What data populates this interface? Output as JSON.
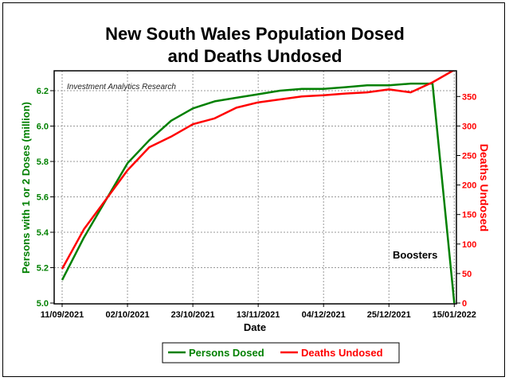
{
  "chart_data": {
    "type": "line",
    "title": [
      "New South Wales Population Dosed",
      "and Deaths Undosed"
    ],
    "watermark": "Investment Analytics Research",
    "annotation": "Boosters",
    "xlabel": "Date",
    "ylabel_left": "Persons with 1 or 2 Doses (million)",
    "ylabel_right": "Deaths Undosed",
    "x": [
      "11/09/2021",
      "18/09/2021",
      "25/09/2021",
      "02/10/2021",
      "09/10/2021",
      "16/10/2021",
      "23/10/2021",
      "30/10/2021",
      "06/11/2021",
      "13/11/2021",
      "20/11/2021",
      "27/11/2021",
      "04/12/2021",
      "11/12/2021",
      "18/12/2021",
      "25/12/2021",
      "01/01/2022",
      "08/01/2022",
      "15/01/2022"
    ],
    "x_ticks": [
      "11/09/2021",
      "02/10/2021",
      "23/10/2021",
      "13/11/2021",
      "04/12/2021",
      "25/12/2021",
      "15/01/2022"
    ],
    "ylim_left": [
      5.0,
      6.33
    ],
    "y_ticks_left": [
      "5.0",
      "5.2",
      "5.4",
      "5.6",
      "5.8",
      "6.0",
      "6.2"
    ],
    "ylim_right": [
      0,
      392
    ],
    "y_ticks_right": [
      "0",
      "50",
      "100",
      "150",
      "200",
      "250",
      "300",
      "350"
    ],
    "grid": true,
    "legend_position": "bottom",
    "series": [
      {
        "name": "Persons Dosed",
        "axis": "left",
        "color": "#008000",
        "values": [
          5.13,
          5.37,
          5.58,
          5.79,
          5.92,
          6.03,
          6.1,
          6.14,
          6.16,
          6.18,
          6.2,
          6.21,
          6.21,
          6.22,
          6.23,
          6.23,
          6.24,
          6.24,
          5.0
        ]
      },
      {
        "name": "Deaths Undosed",
        "axis": "right",
        "color": "#ff0000",
        "values": [
          58,
          125,
          175,
          225,
          264,
          282,
          303,
          313,
          331,
          340,
          345,
          350,
          352,
          355,
          357,
          362,
          357,
          374,
          395
        ]
      }
    ]
  }
}
